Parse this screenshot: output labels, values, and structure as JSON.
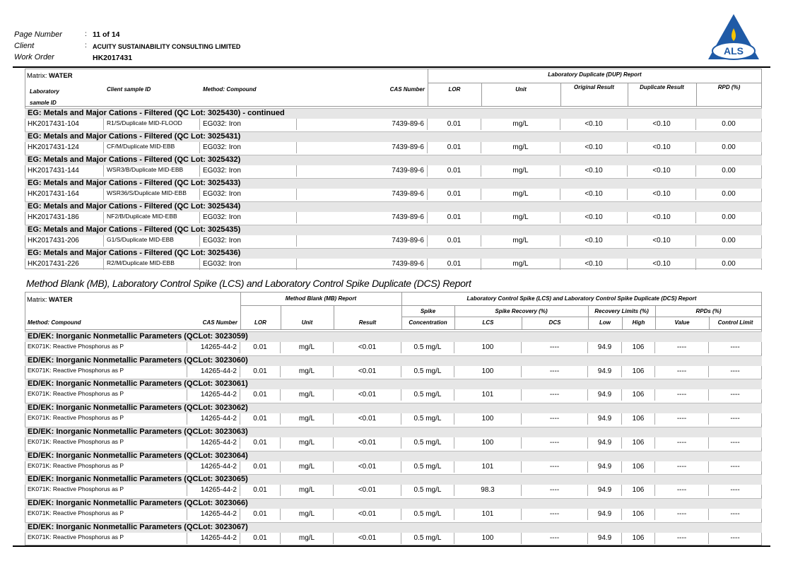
{
  "header": {
    "page_number_label": "Page Number",
    "separator": ":",
    "page_number": "11 of 14",
    "client_label": "Client",
    "client": "ACUITY SUSTAINABILITY CONSULTING LIMITED",
    "work_order_label": "Work Order",
    "work_order": "HK2017431",
    "logo_text": "ALS"
  },
  "duplicate_table": {
    "matrix_label": "Matrix:",
    "matrix": "WATER",
    "report_title": "Laboratory Duplicate (DUP) Report",
    "columns": [
      "Laboratory sample ID",
      "Client sample ID",
      "Method: Compound",
      "CAS Number",
      "LOR",
      "Unit",
      "Original Result",
      "Duplicate Result",
      "RPD (%)"
    ],
    "groups": [
      {
        "title": "EG: Metals and Major Cations - Filtered  (QC Lot: 3025430)  - continued",
        "rows": [
          [
            "HK2017431-104",
            "R1/S/Duplicate MID-FLOOD",
            "EG032: Iron",
            "7439-89-6",
            "0.01",
            "mg/L",
            "<0.10",
            "<0.10",
            "0.00"
          ]
        ]
      },
      {
        "title": "EG: Metals and Major Cations - Filtered  (QC Lot: 3025431)",
        "rows": [
          [
            "HK2017431-124",
            "CF/M/Duplicate MID-EBB",
            "EG032: Iron",
            "7439-89-6",
            "0.01",
            "mg/L",
            "<0.10",
            "<0.10",
            "0.00"
          ]
        ]
      },
      {
        "title": "EG: Metals and Major Cations - Filtered  (QC Lot: 3025432)",
        "rows": [
          [
            "HK2017431-144",
            "WSR3/B/Duplicate MID-EBB",
            "EG032: Iron",
            "7439-89-6",
            "0.01",
            "mg/L",
            "<0.10",
            "<0.10",
            "0.00"
          ]
        ]
      },
      {
        "title": "EG: Metals and Major Cations - Filtered  (QC Lot: 3025433)",
        "rows": [
          [
            "HK2017431-164",
            "WSR36/S/Duplicate MID-EBB",
            "EG032: Iron",
            "7439-89-6",
            "0.01",
            "mg/L",
            "<0.10",
            "<0.10",
            "0.00"
          ]
        ]
      },
      {
        "title": "EG: Metals and Major Cations - Filtered  (QC Lot: 3025434)",
        "rows": [
          [
            "HK2017431-186",
            "NF2/B/Duplicate MID-EBB",
            "EG032: Iron",
            "7439-89-6",
            "0.01",
            "mg/L",
            "<0.10",
            "<0.10",
            "0.00"
          ]
        ]
      },
      {
        "title": "EG: Metals and Major Cations - Filtered  (QC Lot: 3025435)",
        "rows": [
          [
            "HK2017431-206",
            "G1/S/Duplicate MID-EBB",
            "EG032: Iron",
            "7439-89-6",
            "0.01",
            "mg/L",
            "<0.10",
            "<0.10",
            "0.00"
          ]
        ]
      },
      {
        "title": "EG: Metals and Major Cations - Filtered  (QC Lot: 3025436)",
        "rows": [
          [
            "HK2017431-226",
            "R2/M/Duplicate MID-EBB",
            "EG032: Iron",
            "7439-89-6",
            "0.01",
            "mg/L",
            "<0.10",
            "<0.10",
            "0.00"
          ]
        ]
      }
    ]
  },
  "spike_table": {
    "title": "Method Blank (MB), Laboratory Control Spike (LCS) and Laboratory Control Spike Duplicate (DCS) Report",
    "matrix_label": "Matrix:",
    "matrix": "WATER",
    "mb_title": "Method Blank (MB) Report",
    "lcs_title": "Laboratory Control Spike (LCS) and Laboratory Control Spike Duplicate (DCS) Report",
    "column_groups": [
      "Spike",
      "Spike Recovery (%)",
      "Recovery Limits (%)",
      "RPDs (%)"
    ],
    "columns": [
      "Method: Compound",
      "CAS Number",
      "LOR",
      "Unit",
      "Result",
      "Concentration",
      "LCS",
      "DCS",
      "Low",
      "High",
      "Value",
      "Control Limit"
    ],
    "groups": [
      {
        "title": "ED/EK: Inorganic Nonmetallic Parameters  (QCLot: 3023059)",
        "rows": [
          [
            "EK071K: Reactive Phosphorus as P",
            "14265-44-2",
            "0.01",
            "mg/L",
            "<0.01",
            "0.5 mg/L",
            "100",
            "----",
            "94.9",
            "106",
            "----",
            "----"
          ]
        ]
      },
      {
        "title": "ED/EK: Inorganic Nonmetallic Parameters  (QCLot: 3023060)",
        "rows": [
          [
            "EK071K: Reactive Phosphorus as P",
            "14265-44-2",
            "0.01",
            "mg/L",
            "<0.01",
            "0.5 mg/L",
            "100",
            "----",
            "94.9",
            "106",
            "----",
            "----"
          ]
        ]
      },
      {
        "title": "ED/EK: Inorganic Nonmetallic Parameters  (QCLot: 3023061)",
        "rows": [
          [
            "EK071K: Reactive Phosphorus as P",
            "14265-44-2",
            "0.01",
            "mg/L",
            "<0.01",
            "0.5 mg/L",
            "101",
            "----",
            "94.9",
            "106",
            "----",
            "----"
          ]
        ]
      },
      {
        "title": "ED/EK: Inorganic Nonmetallic Parameters  (QCLot: 3023062)",
        "rows": [
          [
            "EK071K: Reactive Phosphorus as P",
            "14265-44-2",
            "0.01",
            "mg/L",
            "<0.01",
            "0.5 mg/L",
            "100",
            "----",
            "94.9",
            "106",
            "----",
            "----"
          ]
        ]
      },
      {
        "title": "ED/EK: Inorganic Nonmetallic Parameters  (QCLot: 3023063)",
        "rows": [
          [
            "EK071K: Reactive Phosphorus as P",
            "14265-44-2",
            "0.01",
            "mg/L",
            "<0.01",
            "0.5 mg/L",
            "100",
            "----",
            "94.9",
            "106",
            "----",
            "----"
          ]
        ]
      },
      {
        "title": "ED/EK: Inorganic Nonmetallic Parameters  (QCLot: 3023064)",
        "rows": [
          [
            "EK071K: Reactive Phosphorus as P",
            "14265-44-2",
            "0.01",
            "mg/L",
            "<0.01",
            "0.5 mg/L",
            "101",
            "----",
            "94.9",
            "106",
            "----",
            "----"
          ]
        ]
      },
      {
        "title": "ED/EK: Inorganic Nonmetallic Parameters  (QCLot: 3023065)",
        "rows": [
          [
            "EK071K: Reactive Phosphorus as P",
            "14265-44-2",
            "0.01",
            "mg/L",
            "<0.01",
            "0.5 mg/L",
            "98.3",
            "----",
            "94.9",
            "106",
            "----",
            "----"
          ]
        ]
      },
      {
        "title": "ED/EK: Inorganic Nonmetallic Parameters  (QCLot: 3023066)",
        "rows": [
          [
            "EK071K: Reactive Phosphorus as P",
            "14265-44-2",
            "0.01",
            "mg/L",
            "<0.01",
            "0.5 mg/L",
            "101",
            "----",
            "94.9",
            "106",
            "----",
            "----"
          ]
        ]
      },
      {
        "title": "ED/EK: Inorganic Nonmetallic Parameters  (QCLot: 3023067)",
        "rows": [
          [
            "EK071K: Reactive Phosphorus as P",
            "14265-44-2",
            "0.01",
            "mg/L",
            "<0.01",
            "0.5 mg/L",
            "100",
            "----",
            "94.9",
            "106",
            "----",
            "----"
          ]
        ]
      }
    ]
  }
}
